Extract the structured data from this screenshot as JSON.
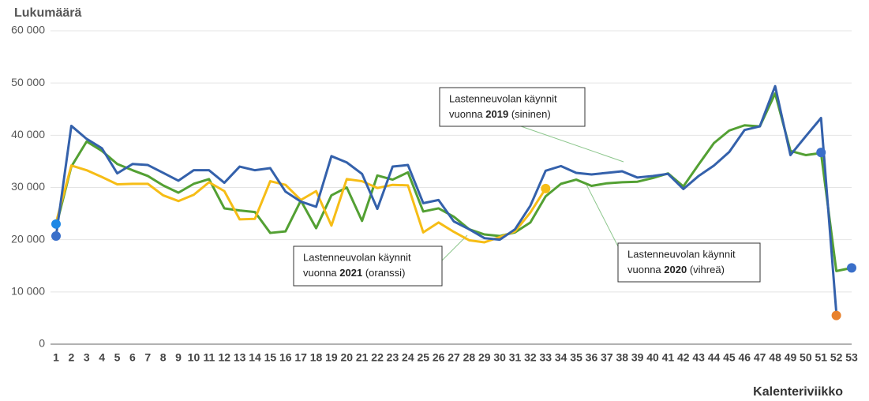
{
  "chart_data": {
    "type": "line",
    "y_label": "Lukumäärä",
    "x_label": "Kalenteriviikko",
    "categories": [
      "1",
      "2",
      "3",
      "4",
      "5",
      "6",
      "7",
      "8",
      "9",
      "10",
      "11",
      "12",
      "13",
      "14",
      "15",
      "16",
      "17",
      "18",
      "19",
      "20",
      "21",
      "22",
      "23",
      "24",
      "25",
      "26",
      "27",
      "28",
      "29",
      "30",
      "31",
      "32",
      "33",
      "34",
      "35",
      "36",
      "37",
      "38",
      "39",
      "40",
      "41",
      "42",
      "43",
      "44",
      "45",
      "46",
      "47",
      "48",
      "49",
      "50",
      "51",
      "52",
      "53"
    ],
    "series": [
      {
        "color": "#3461ab",
        "values": [
          20700,
          41800,
          39300,
          37500,
          32700,
          34500,
          34300,
          32800,
          31300,
          33300,
          33300,
          30900,
          34000,
          33300,
          33700,
          29200,
          27300,
          26300,
          36000,
          34800,
          32600,
          25900,
          34000,
          34300,
          27000,
          27600,
          23500,
          22000,
          20300,
          20000,
          22000,
          26500,
          33200,
          34100,
          32800,
          32500,
          32800,
          33100,
          31900,
          32200,
          32600,
          29700,
          32200,
          34200,
          36800,
          41000,
          41700,
          49400,
          36200,
          39800,
          43300,
          6000,
          null
        ]
      },
      {
        "color": "#53a033",
        "values": [
          22500,
          34000,
          38800,
          37000,
          34500,
          33300,
          32200,
          30400,
          29000,
          30700,
          31600,
          26000,
          25600,
          25300,
          21300,
          21600,
          27500,
          22200,
          28500,
          30000,
          23600,
          32300,
          31500,
          32900,
          25400,
          26000,
          24400,
          22000,
          21000,
          20700,
          21400,
          23300,
          28300,
          30700,
          31500,
          30300,
          30800,
          31000,
          31100,
          31800,
          32700,
          30200,
          34400,
          38500,
          40900,
          41900,
          41700,
          48000,
          37000,
          36200,
          36600,
          14000,
          14600
        ]
      },
      {
        "color": "#f6bd16",
        "values": [
          23300,
          34200,
          33300,
          32000,
          30600,
          30700,
          30700,
          28500,
          27400,
          28600,
          31000,
          29300,
          23900,
          24000,
          31200,
          30500,
          27600,
          29300,
          22700,
          31600,
          31200,
          29900,
          30500,
          30400,
          21400,
          23300,
          21500,
          19900,
          19500,
          20500,
          21600,
          25200,
          29800,
          null,
          null,
          null,
          null,
          null,
          null,
          null,
          null,
          null,
          null,
          null,
          null,
          null,
          null,
          null,
          null,
          null,
          null,
          null,
          null
        ]
      }
    ],
    "points": [
      {
        "x": 1,
        "value": 20700,
        "color": "#3a6fc9"
      },
      {
        "x": 1,
        "value": 23000,
        "color": "#1e88e5"
      },
      {
        "x": 33,
        "value": 29800,
        "color": "#f6bd16"
      },
      {
        "x": 51,
        "value": 36700,
        "color": "#3a6fc9"
      },
      {
        "x": 52,
        "value": 5500,
        "color": "#e8812c"
      },
      {
        "x": 53,
        "value": 14600,
        "color": "#3a6fc9"
      }
    ],
    "annotations": [
      {
        "line1": "Lastenneuvolan käynnit",
        "prefix": "vuonna",
        "year": "2019",
        "suffix": "(sininen)"
      },
      {
        "line1": "Lastenneuvolan käynnit",
        "prefix": "vuonna",
        "year": "2020",
        "suffix": "(vihreä)"
      },
      {
        "line1": "Lastenneuvolan käynnit",
        "prefix": "vuonna",
        "year": "2021",
        "suffix": "(oranssi)"
      }
    ],
    "ylim": [
      0,
      60000
    ],
    "yticks": [
      {
        "value": 0,
        "label": "0"
      },
      {
        "value": 10000,
        "label": "10 000"
      },
      {
        "value": 20000,
        "label": "20 000"
      },
      {
        "value": 30000,
        "label": "30 000"
      },
      {
        "value": 40000,
        "label": "40 000"
      },
      {
        "value": 50000,
        "label": "50 000"
      },
      {
        "value": 60000,
        "label": "60 000"
      }
    ],
    "grid": true
  }
}
